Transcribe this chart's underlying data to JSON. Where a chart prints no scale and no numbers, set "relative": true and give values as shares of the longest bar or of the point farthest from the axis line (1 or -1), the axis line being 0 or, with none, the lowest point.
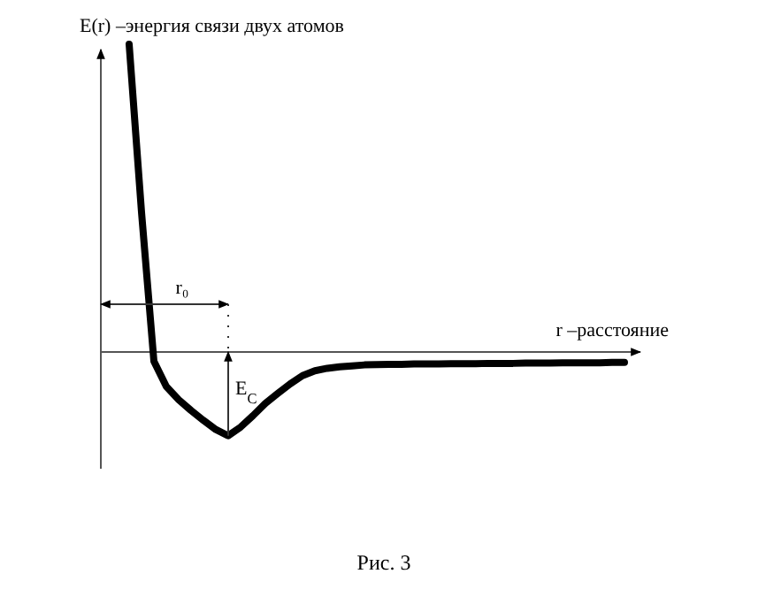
{
  "chart_data": {
    "type": "line",
    "relative": true,
    "xlabel": "r –расстояние",
    "ylabel": "E(r) –энергия связи двух атомов",
    "categories": [
      null,
      null,
      null,
      null,
      null,
      null,
      null,
      null,
      null,
      null,
      null,
      null,
      null,
      null,
      null,
      null,
      null,
      null,
      null,
      null,
      null,
      null,
      null,
      null,
      null,
      null,
      null,
      null,
      null,
      null,
      null,
      null,
      null,
      null,
      null,
      null,
      null,
      null,
      null,
      null,
      null
    ],
    "series": [
      {
        "color": "#000000",
        "values": [
          1,
          0.454,
          -0.03,
          -0.112,
          -0.155,
          -0.19,
          -0.222,
          -0.252,
          -0.272,
          -0.244,
          -0.207,
          -0.167,
          -0.135,
          -0.104,
          -0.077,
          -0.061,
          -0.053,
          -0.048,
          -0.045,
          -0.042,
          -0.041,
          -0.04,
          -0.04,
          -0.039,
          -0.039,
          -0.039,
          -0.038,
          -0.038,
          -0.038,
          -0.037,
          -0.037,
          -0.037,
          -0.036,
          -0.036,
          -0.036,
          -0.035,
          -0.035,
          -0.035,
          -0.035,
          -0.034,
          -0.034
        ]
      }
    ],
    "annotations": [
      "r₀",
      "E$_{C}$",
      "Рис. 3"
    ]
  }
}
